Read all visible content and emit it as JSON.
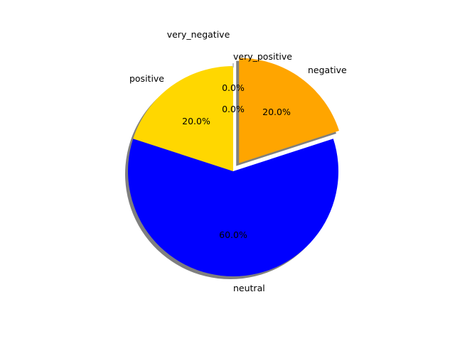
{
  "chart_data": {
    "type": "pie",
    "title": "",
    "slices": [
      {
        "label": "very_negative",
        "value": 0.0,
        "pct_label": "0.0%",
        "color": "#ff0000",
        "exploded": false
      },
      {
        "label": "negative",
        "value": 20.0,
        "pct_label": "20.0%",
        "color": "#ffa500",
        "exploded": true
      },
      {
        "label": "neutral",
        "value": 60.0,
        "pct_label": "60.0%",
        "color": "#0000ff",
        "exploded": false
      },
      {
        "label": "positive",
        "value": 20.0,
        "pct_label": "20.0%",
        "color": "#ffd700",
        "exploded": false
      },
      {
        "label": "very_positive",
        "value": 0.0,
        "pct_label": "0.0%",
        "color": "#008000",
        "exploded": false
      }
    ],
    "start_angle": 90,
    "direction": "clockwise",
    "shadow": true,
    "legend": "none"
  }
}
